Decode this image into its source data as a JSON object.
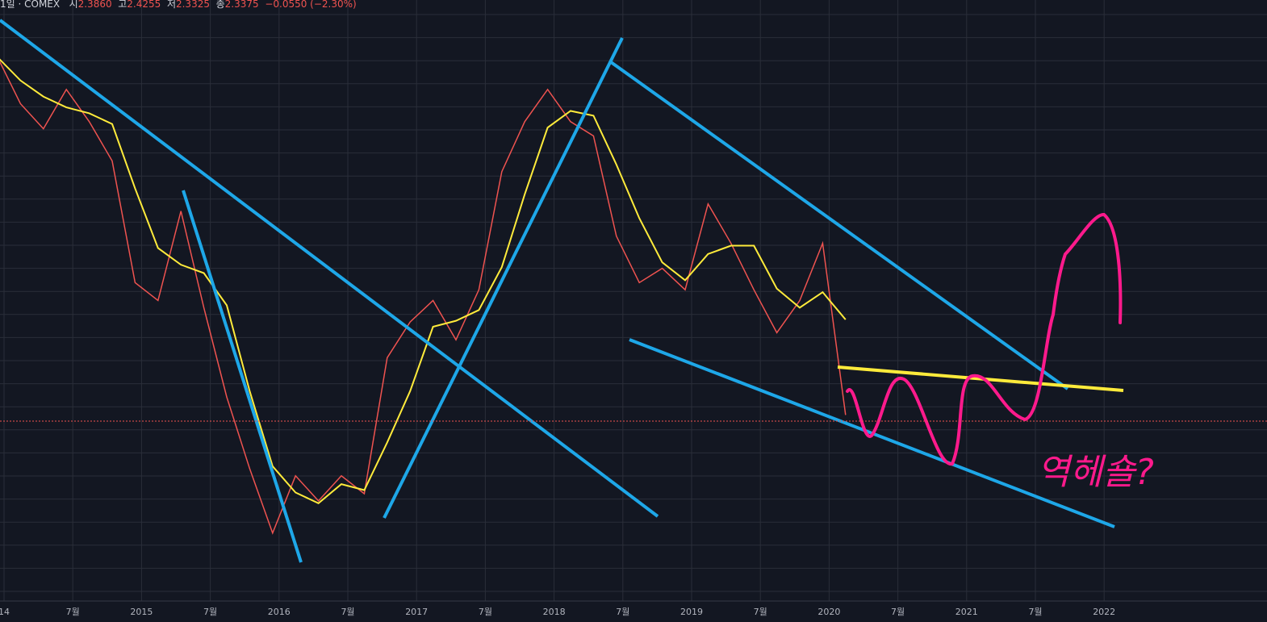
{
  "header": {
    "symbol": "1일 · COMEX",
    "open_label": "시",
    "open": "2.3860",
    "high_label": "고",
    "high": "2.4255",
    "low_label": "저",
    "low": "2.3325",
    "close_label": "종",
    "close": "2.3375",
    "change": "−0.0550 (−2.30%)"
  },
  "x_axis": [
    "14",
    "7월",
    "2015",
    "7월",
    "2016",
    "7월",
    "2017",
    "7월",
    "2018",
    "7월",
    "2019",
    "7월",
    "2020",
    "7월",
    "2021",
    "7월",
    "2022"
  ],
  "annotation": "역헤숄?",
  "chart_data": {
    "type": "line",
    "x": [
      "2014-01",
      "2014-03",
      "2014-05",
      "2014-07",
      "2014-09",
      "2014-11",
      "2015-01",
      "2015-03",
      "2015-05",
      "2015-07",
      "2015-09",
      "2015-11",
      "2016-01",
      "2016-03",
      "2016-05",
      "2016-07",
      "2016-09",
      "2016-11",
      "2017-01",
      "2017-03",
      "2017-05",
      "2017-07",
      "2017-09",
      "2017-11",
      "2018-01",
      "2018-03",
      "2018-05",
      "2018-07",
      "2018-09",
      "2018-11",
      "2019-01",
      "2019-03",
      "2019-05",
      "2019-07",
      "2019-09",
      "2019-11",
      "2020-01",
      "2020-03"
    ],
    "series": [
      {
        "name": "COMEX",
        "color": "#ef5350",
        "values": [
          3.34,
          3.21,
          3.14,
          3.25,
          3.16,
          3.05,
          2.71,
          2.66,
          2.91,
          2.64,
          2.39,
          2.19,
          2.01,
          2.17,
          2.1,
          2.17,
          2.12,
          2.5,
          2.6,
          2.66,
          2.55,
          2.69,
          3.02,
          3.16,
          3.25,
          3.16,
          3.12,
          2.84,
          2.71,
          2.75,
          2.69,
          2.93,
          2.82,
          2.69,
          2.57,
          2.66,
          2.82,
          2.34
        ]
      }
    ],
    "ylim": [
      1.82,
      3.5
    ]
  }
}
